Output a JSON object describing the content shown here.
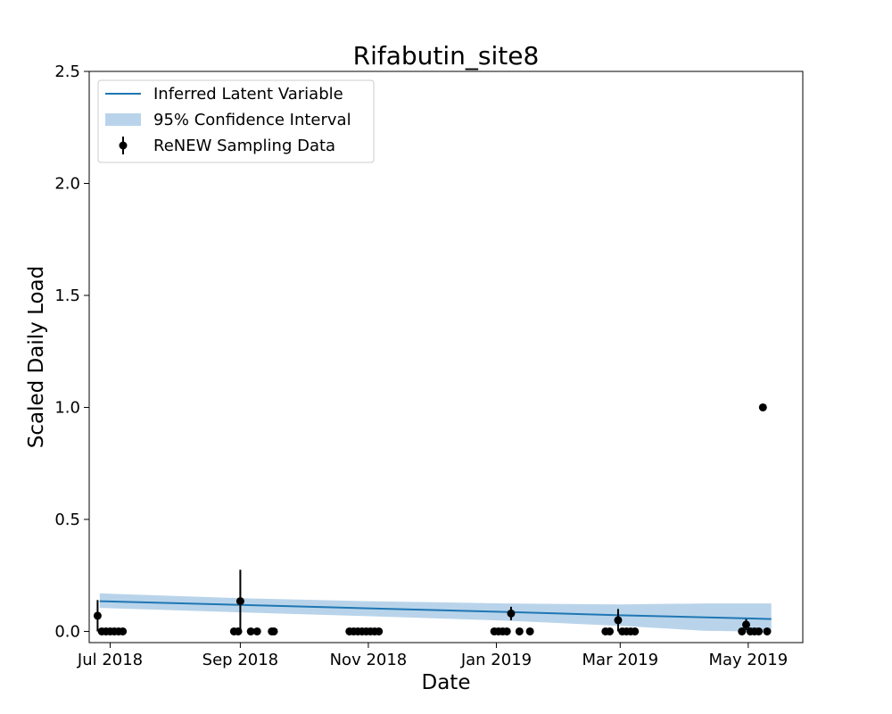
{
  "chart_data": {
    "type": "line",
    "title": "Rifabutin_site8",
    "xlabel": "Date",
    "ylabel": "Scaled Daily Load",
    "xlim": [
      "2018-06-21",
      "2019-05-27"
    ],
    "ylim": [
      -0.05,
      2.5
    ],
    "x_ticks": [
      {
        "date": "2018-07-01",
        "label": "Jul 2018"
      },
      {
        "date": "2018-09-01",
        "label": "Sep 2018"
      },
      {
        "date": "2018-11-01",
        "label": "Nov 2018"
      },
      {
        "date": "2019-01-01",
        "label": "Jan 2019"
      },
      {
        "date": "2019-03-01",
        "label": "Mar 2019"
      },
      {
        "date": "2019-05-01",
        "label": "May 2019"
      }
    ],
    "y_ticks": [
      {
        "value": 0.0,
        "label": "0.0"
      },
      {
        "value": 0.5,
        "label": "0.5"
      },
      {
        "value": 1.0,
        "label": "1.0"
      },
      {
        "value": 1.5,
        "label": "1.5"
      },
      {
        "value": 2.0,
        "label": "2.0"
      },
      {
        "value": 2.5,
        "label": "2.5"
      }
    ],
    "grid": false,
    "legend_position": "top-left",
    "legend": [
      {
        "label": "Inferred Latent Variable",
        "kind": "line"
      },
      {
        "label": "95% Confidence Interval",
        "kind": "band"
      },
      {
        "label": "ReNEW Sampling Data",
        "kind": "errorbar"
      }
    ],
    "colors": {
      "latent": "#1f77b4",
      "band": "#b9d4ea",
      "points": "#000000"
    },
    "latent_line": {
      "x": [
        "2018-06-26",
        "2018-09-01",
        "2018-11-01",
        "2019-01-05",
        "2019-03-01",
        "2019-05-01",
        "2019-05-12"
      ],
      "y": [
        0.135,
        0.118,
        0.103,
        0.087,
        0.072,
        0.058,
        0.055
      ]
    },
    "confidence_band": {
      "x": [
        "2018-06-26",
        "2018-09-01",
        "2018-11-01",
        "2019-01-05",
        "2019-03-01",
        "2019-04-10",
        "2019-05-01",
        "2019-05-12"
      ],
      "lower": [
        0.105,
        0.085,
        0.068,
        0.048,
        0.025,
        0.003,
        0.0,
        0.0
      ],
      "upper": [
        0.17,
        0.148,
        0.135,
        0.125,
        0.12,
        0.125,
        0.125,
        0.125
      ]
    },
    "sampling_data": [
      {
        "x": "2018-06-25",
        "y": 0.07,
        "err": 0.07
      },
      {
        "x": "2018-06-27",
        "y": 0.0
      },
      {
        "x": "2018-06-29",
        "y": 0.0
      },
      {
        "x": "2018-07-01",
        "y": 0.0
      },
      {
        "x": "2018-07-03",
        "y": 0.0
      },
      {
        "x": "2018-07-05",
        "y": 0.0
      },
      {
        "x": "2018-07-07",
        "y": 0.0
      },
      {
        "x": "2018-08-29",
        "y": 0.0
      },
      {
        "x": "2018-08-31",
        "y": 0.0
      },
      {
        "x": "2018-09-01",
        "y": 0.135,
        "err": 0.14
      },
      {
        "x": "2018-09-06",
        "y": 0.0
      },
      {
        "x": "2018-09-09",
        "y": 0.0
      },
      {
        "x": "2018-09-16",
        "y": 0.0
      },
      {
        "x": "2018-09-17",
        "y": 0.0
      },
      {
        "x": "2018-10-23",
        "y": 0.0
      },
      {
        "x": "2018-10-25",
        "y": 0.0
      },
      {
        "x": "2018-10-27",
        "y": 0.0
      },
      {
        "x": "2018-10-29",
        "y": 0.0
      },
      {
        "x": "2018-10-31",
        "y": 0.0
      },
      {
        "x": "2018-11-02",
        "y": 0.0
      },
      {
        "x": "2018-11-04",
        "y": 0.0
      },
      {
        "x": "2018-11-06",
        "y": 0.0
      },
      {
        "x": "2018-12-31",
        "y": 0.0
      },
      {
        "x": "2019-01-02",
        "y": 0.0
      },
      {
        "x": "2019-01-04",
        "y": 0.0
      },
      {
        "x": "2019-01-06",
        "y": 0.0
      },
      {
        "x": "2019-01-08",
        "y": 0.08,
        "err": 0.03
      },
      {
        "x": "2019-01-12",
        "y": 0.0
      },
      {
        "x": "2019-01-17",
        "y": 0.0
      },
      {
        "x": "2019-02-22",
        "y": 0.0
      },
      {
        "x": "2019-02-24",
        "y": 0.0
      },
      {
        "x": "2019-02-28",
        "y": 0.05,
        "err": 0.05
      },
      {
        "x": "2019-03-02",
        "y": 0.0
      },
      {
        "x": "2019-03-04",
        "y": 0.0
      },
      {
        "x": "2019-03-06",
        "y": 0.0
      },
      {
        "x": "2019-03-08",
        "y": 0.0
      },
      {
        "x": "2019-04-28",
        "y": 0.0
      },
      {
        "x": "2019-04-30",
        "y": 0.03,
        "err": 0.025
      },
      {
        "x": "2019-05-02",
        "y": 0.0
      },
      {
        "x": "2019-05-04",
        "y": 0.0
      },
      {
        "x": "2019-05-06",
        "y": 0.0
      },
      {
        "x": "2019-05-08",
        "y": 1.0
      },
      {
        "x": "2019-05-10",
        "y": 0.0
      }
    ]
  }
}
